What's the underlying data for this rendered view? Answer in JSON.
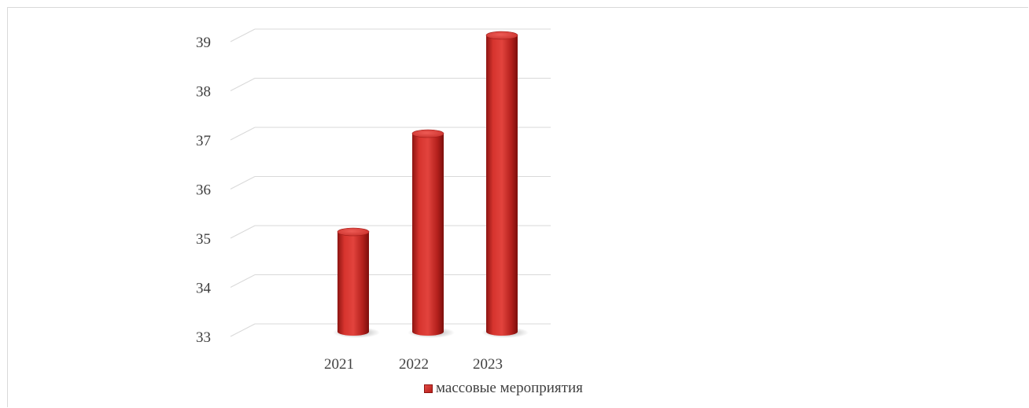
{
  "chart_data": {
    "type": "bar",
    "style": "3d-cylinder",
    "categories": [
      "2021",
      "2022",
      "2023"
    ],
    "series": [
      {
        "name": "массовые мероприятия",
        "values": [
          35,
          37,
          39
        ],
        "color": "#c62a25"
      }
    ],
    "title": "",
    "xlabel": "",
    "ylabel": "",
    "ylim": [
      33,
      39
    ],
    "yticks": [
      "33",
      "34",
      "35",
      "36",
      "37",
      "38",
      "39"
    ],
    "grid": true,
    "legend_position": "bottom"
  }
}
